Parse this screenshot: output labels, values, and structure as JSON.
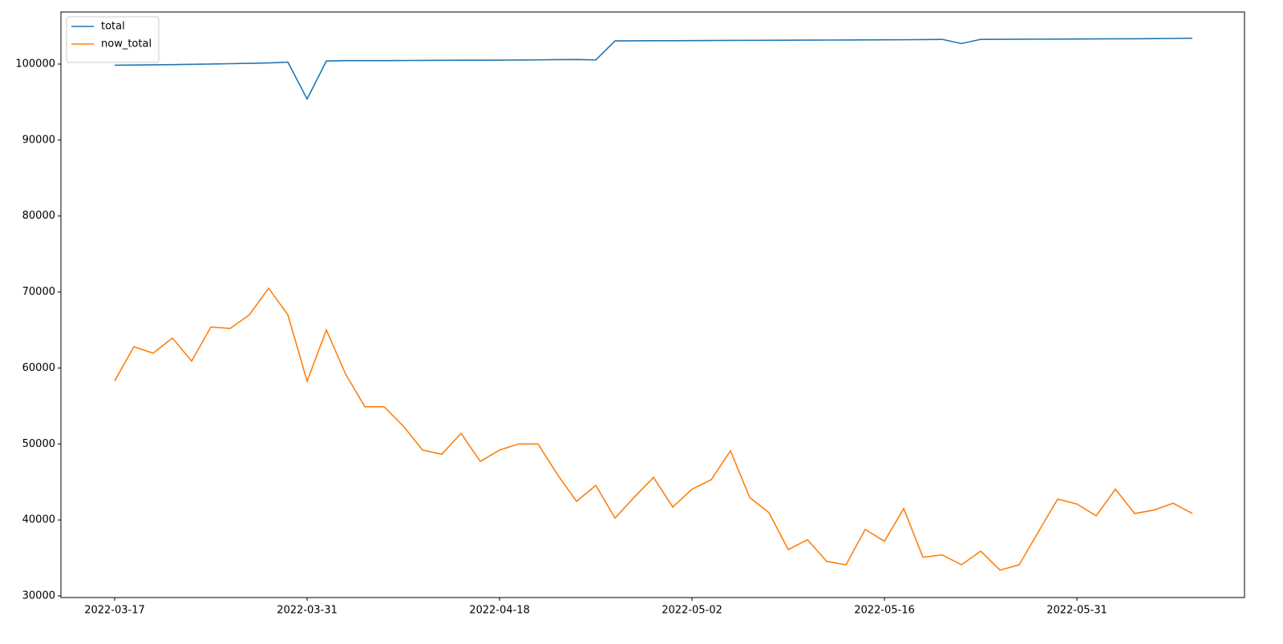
{
  "chart_data": {
    "type": "line",
    "categories": [
      "2022-03-17",
      null,
      null,
      null,
      null,
      null,
      null,
      null,
      null,
      null,
      "2022-03-31",
      null,
      null,
      null,
      null,
      null,
      null,
      null,
      null,
      null,
      "2022-04-18",
      null,
      null,
      null,
      null,
      null,
      null,
      null,
      null,
      null,
      "2022-05-02",
      null,
      null,
      null,
      null,
      null,
      null,
      null,
      null,
      null,
      "2022-05-16",
      null,
      null,
      null,
      null,
      null,
      null,
      null,
      null,
      null,
      "2022-05-31",
      null,
      null,
      null,
      null,
      null,
      null
    ],
    "series": [
      {
        "name": "total",
        "color": "#1f77b4",
        "values": [
          99850,
          99870,
          99900,
          99930,
          99960,
          100000,
          100050,
          100100,
          100150,
          100250,
          95400,
          100400,
          100450,
          100450,
          100450,
          100470,
          100480,
          100490,
          100500,
          100510,
          100520,
          100530,
          100550,
          100580,
          100600,
          100550,
          103050,
          103060,
          103070,
          103080,
          103090,
          103100,
          103110,
          103120,
          103130,
          103140,
          103150,
          103160,
          103170,
          103180,
          103190,
          103200,
          103220,
          103250,
          102700,
          103250,
          103260,
          103270,
          103280,
          103290,
          103300,
          103310,
          103320,
          103330,
          103350,
          103370,
          103400
        ]
      },
      {
        "name": "now_total",
        "color": "#ff7f0e",
        "values": [
          58300,
          62800,
          61950,
          63950,
          60900,
          65400,
          65200,
          67000,
          70500,
          67000,
          58250,
          65000,
          59200,
          54900,
          54900,
          52350,
          49200,
          48650,
          51400,
          47700,
          49200,
          50000,
          50000,
          46000,
          42450,
          44550,
          40250,
          43000,
          45600,
          41700,
          44050,
          45300,
          49100,
          42950,
          40950,
          36100,
          37400,
          34550,
          34100,
          38750,
          37200,
          41500,
          35100,
          35400,
          34100,
          35900,
          33400,
          34100,
          38450,
          42750,
          42100,
          40550,
          44050,
          40850,
          41300,
          42200,
          40850
        ]
      }
    ],
    "ylim": [
      29790,
      106850
    ],
    "yticks": [
      30000,
      40000,
      50000,
      60000,
      70000,
      80000,
      90000,
      100000
    ],
    "legend": "upper left"
  }
}
